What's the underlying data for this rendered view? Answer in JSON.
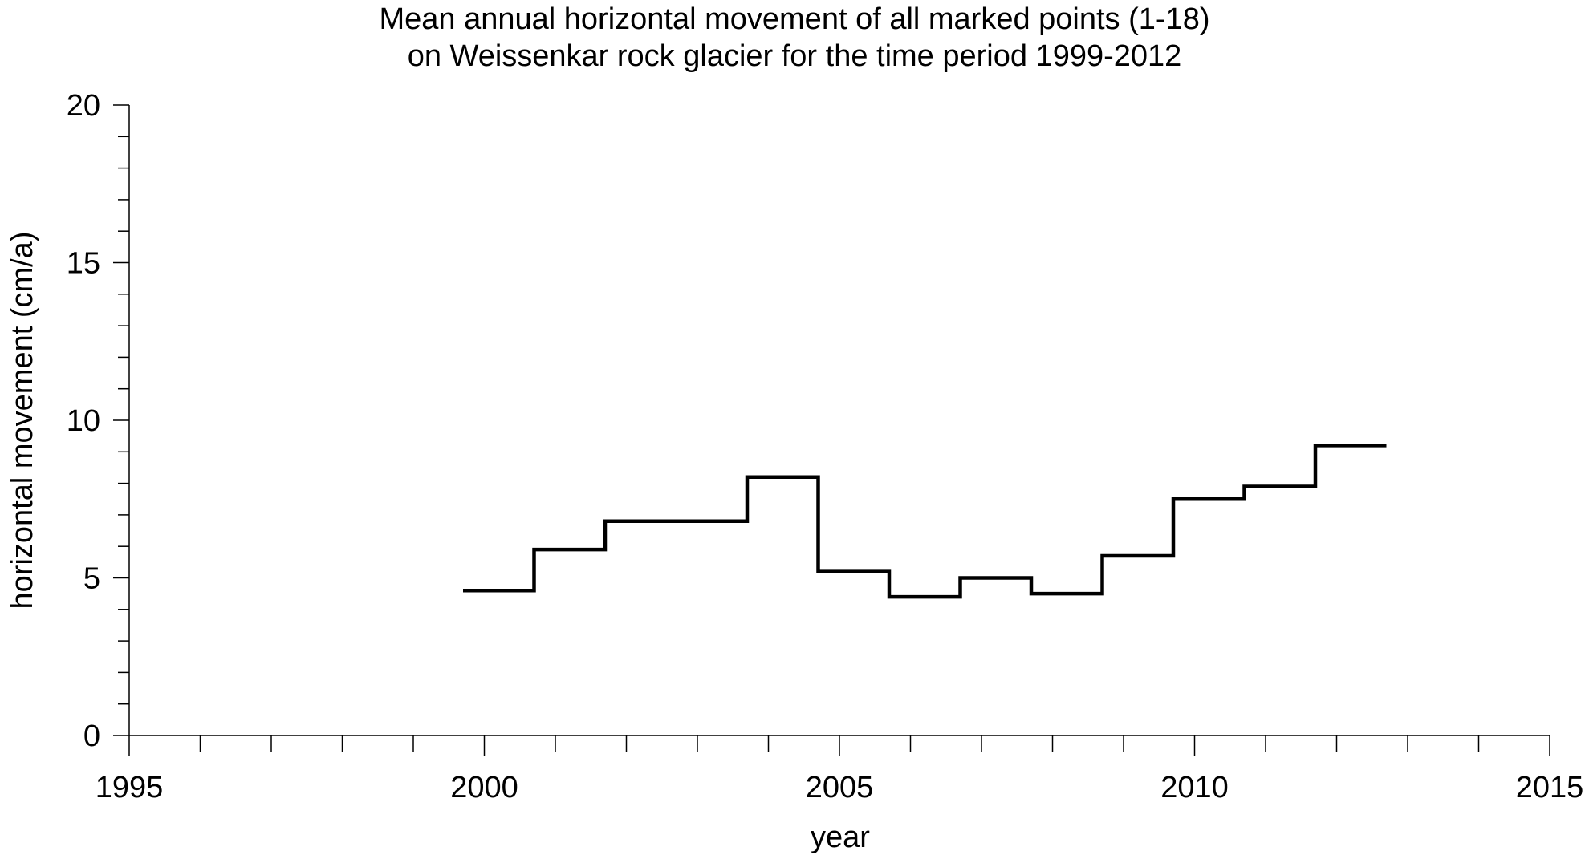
{
  "chart_data": {
    "type": "line",
    "step": true,
    "title": [
      "Mean annual horizontal movement of all marked points (1-18)",
      "on Weissenkar rock glacier for the time period 1999-2012"
    ],
    "xlabel": "year",
    "ylabel": "horizontal movement (cm/a)",
    "xlim": [
      1995,
      2015
    ],
    "ylim": [
      0,
      20
    ],
    "x_ticks": [
      1995,
      2000,
      2005,
      2010,
      2015
    ],
    "y_ticks": [
      0,
      5,
      10,
      15,
      20
    ],
    "x_minor_step": 1,
    "y_minor_step": 1,
    "grid": false,
    "series": [
      {
        "segments": [
          {
            "from": 1999.7,
            "to": 2000.7,
            "value": 4.6
          },
          {
            "from": 2000.7,
            "to": 2001.7,
            "value": 5.9
          },
          {
            "from": 2001.7,
            "to": 2003.7,
            "value": 6.8
          },
          {
            "from": 2003.7,
            "to": 2004.7,
            "value": 8.2
          },
          {
            "from": 2004.7,
            "to": 2005.7,
            "value": 5.2
          },
          {
            "from": 2005.7,
            "to": 2006.7,
            "value": 4.4
          },
          {
            "from": 2006.7,
            "to": 2007.7,
            "value": 5.0
          },
          {
            "from": 2007.7,
            "to": 2008.7,
            "value": 4.5
          },
          {
            "from": 2008.7,
            "to": 2009.7,
            "value": 5.7
          },
          {
            "from": 2009.7,
            "to": 2010.7,
            "value": 7.5
          },
          {
            "from": 2010.7,
            "to": 2011.7,
            "value": 7.9
          },
          {
            "from": 2011.7,
            "to": 2012.7,
            "value": 9.2
          }
        ],
        "color": "#000000"
      }
    ]
  }
}
